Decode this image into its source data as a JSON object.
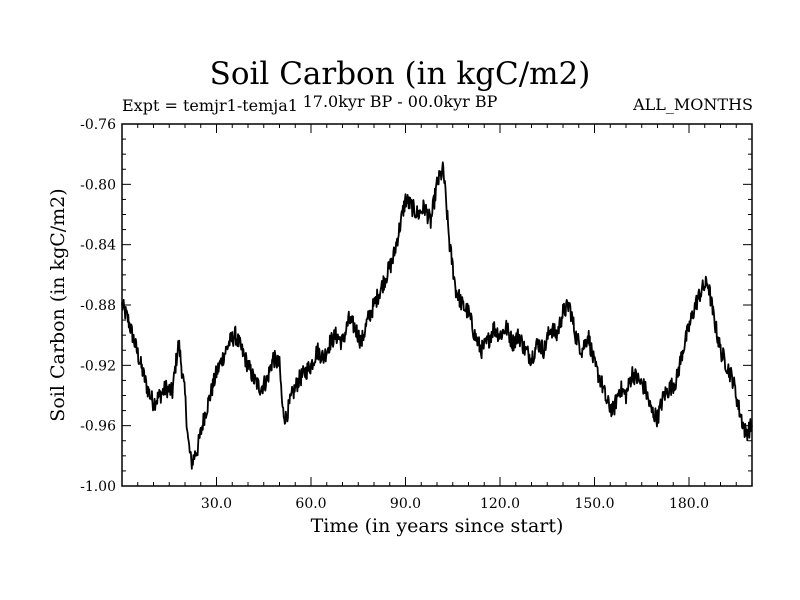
{
  "header": {
    "title": "Soil Carbon (in kgC/m2)",
    "expt": "Expt = temjr1-temja1",
    "period": "17.0kyr BP - 00.0kyr BP",
    "months": "ALL_MONTHS"
  },
  "chart_data": {
    "type": "line",
    "title": "Soil Carbon (in kgC/m2)",
    "xlabel": "Time (in years since start)",
    "ylabel": "Soil Carbon (in kgC/m2)",
    "xlim": [
      0,
      200
    ],
    "ylim": [
      -1.0,
      -0.76
    ],
    "xticks": [
      30,
      60,
      90,
      120,
      150,
      180
    ],
    "xtick_labels": [
      "30.0",
      "60.0",
      "90.0",
      "120.0",
      "150.0",
      "180.0"
    ],
    "yticks": [
      -1.0,
      -0.96,
      -0.92,
      -0.88,
      -0.84,
      -0.8,
      -0.76
    ],
    "ytick_labels": [
      "-1.00",
      "-0.96",
      "-0.92",
      "-0.88",
      "-0.84",
      "-0.80",
      "-0.76"
    ],
    "series": [
      {
        "name": "temjr1-temja1",
        "x": [
          0,
          2,
          4,
          6,
          8,
          10,
          12,
          14,
          16,
          17,
          18,
          20,
          21,
          22,
          24,
          26,
          28,
          30,
          32,
          34,
          36,
          38,
          40,
          42,
          44,
          46,
          48,
          50,
          51,
          52,
          54,
          56,
          58,
          60,
          62,
          64,
          66,
          68,
          70,
          72,
          74,
          76,
          78,
          80,
          82,
          84,
          86,
          88,
          90,
          92,
          94,
          96,
          98,
          100,
          102,
          104,
          106,
          108,
          110,
          112,
          114,
          116,
          118,
          120,
          122,
          124,
          126,
          128,
          130,
          132,
          134,
          136,
          138,
          140,
          142,
          144,
          146,
          148,
          150,
          152,
          154,
          156,
          158,
          160,
          162,
          164,
          166,
          168,
          170,
          172,
          174,
          176,
          178,
          180,
          182,
          184,
          186,
          188,
          190,
          192,
          194,
          196,
          198,
          200
        ],
        "y": [
          -0.88,
          -0.89,
          -0.905,
          -0.92,
          -0.935,
          -0.945,
          -0.94,
          -0.935,
          -0.938,
          -0.92,
          -0.905,
          -0.94,
          -0.97,
          -0.985,
          -0.975,
          -0.955,
          -0.94,
          -0.925,
          -0.915,
          -0.905,
          -0.9,
          -0.91,
          -0.92,
          -0.93,
          -0.935,
          -0.93,
          -0.915,
          -0.92,
          -0.95,
          -0.955,
          -0.94,
          -0.93,
          -0.925,
          -0.92,
          -0.91,
          -0.915,
          -0.905,
          -0.9,
          -0.905,
          -0.89,
          -0.895,
          -0.905,
          -0.89,
          -0.88,
          -0.87,
          -0.86,
          -0.85,
          -0.83,
          -0.81,
          -0.815,
          -0.82,
          -0.815,
          -0.825,
          -0.8,
          -0.79,
          -0.84,
          -0.87,
          -0.88,
          -0.885,
          -0.9,
          -0.91,
          -0.905,
          -0.895,
          -0.9,
          -0.895,
          -0.905,
          -0.9,
          -0.91,
          -0.915,
          -0.905,
          -0.91,
          -0.895,
          -0.9,
          -0.885,
          -0.88,
          -0.9,
          -0.91,
          -0.9,
          -0.92,
          -0.93,
          -0.945,
          -0.95,
          -0.935,
          -0.94,
          -0.925,
          -0.93,
          -0.935,
          -0.95,
          -0.955,
          -0.94,
          -0.935,
          -0.93,
          -0.91,
          -0.895,
          -0.88,
          -0.87,
          -0.865,
          -0.89,
          -0.91,
          -0.92,
          -0.93,
          -0.95,
          -0.965,
          -0.96
        ]
      }
    ]
  }
}
